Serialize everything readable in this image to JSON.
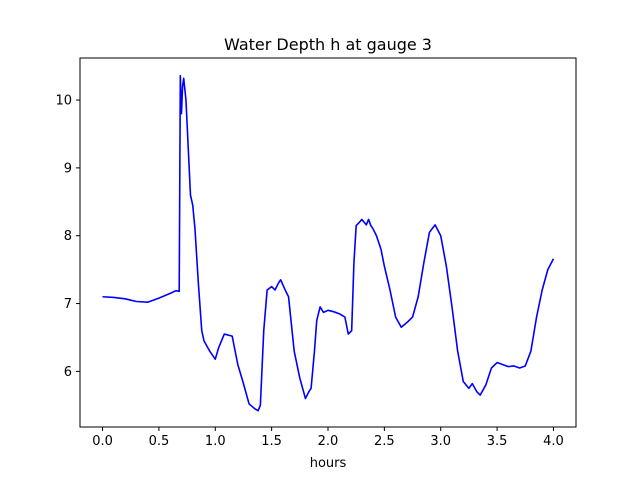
{
  "chart_data": {
    "type": "line",
    "title": "Water Depth h at gauge 3",
    "xlabel": "hours",
    "ylabel": "",
    "xlim": [
      -0.2,
      4.2
    ],
    "ylim": [
      5.18,
      10.62
    ],
    "xticks": [
      0.0,
      0.5,
      1.0,
      1.5,
      2.0,
      2.5,
      3.0,
      3.5,
      4.0
    ],
    "xtick_labels": [
      "0.0",
      "0.5",
      "1.0",
      "1.5",
      "2.0",
      "2.5",
      "3.0",
      "3.5",
      "4.0"
    ],
    "yticks": [
      6,
      7,
      8,
      9,
      10
    ],
    "ytick_labels": [
      "6",
      "7",
      "8",
      "9",
      "10"
    ],
    "grid": false,
    "legend": "none",
    "series": [
      {
        "color": "#0000ff",
        "x": [
          0.0,
          0.1,
          0.2,
          0.3,
          0.4,
          0.5,
          0.6,
          0.65,
          0.68,
          0.69,
          0.7,
          0.71,
          0.72,
          0.74,
          0.76,
          0.78,
          0.8,
          0.82,
          0.85,
          0.88,
          0.9,
          0.95,
          1.0,
          1.03,
          1.08,
          1.15,
          1.2,
          1.25,
          1.3,
          1.35,
          1.38,
          1.4,
          1.43,
          1.46,
          1.5,
          1.53,
          1.56,
          1.58,
          1.62,
          1.65,
          1.7,
          1.75,
          1.8,
          1.83,
          1.85,
          1.88,
          1.9,
          1.93,
          1.96,
          2.0,
          2.05,
          2.1,
          2.15,
          2.18,
          2.21,
          2.23,
          2.25,
          2.28,
          2.3,
          2.32,
          2.34,
          2.36,
          2.38,
          2.4,
          2.43,
          2.47,
          2.5,
          2.55,
          2.6,
          2.65,
          2.7,
          2.75,
          2.8,
          2.85,
          2.9,
          2.95,
          3.0,
          3.05,
          3.1,
          3.15,
          3.2,
          3.25,
          3.28,
          3.32,
          3.35,
          3.4,
          3.45,
          3.5,
          3.55,
          3.6,
          3.65,
          3.7,
          3.75,
          3.8,
          3.85,
          3.9,
          3.95,
          4.0
        ],
        "y": [
          7.1,
          7.09,
          7.07,
          7.03,
          7.02,
          7.08,
          7.15,
          7.19,
          7.18,
          10.36,
          9.8,
          10.2,
          10.32,
          10.0,
          9.3,
          8.6,
          8.45,
          8.1,
          7.3,
          6.6,
          6.45,
          6.3,
          6.18,
          6.35,
          6.55,
          6.52,
          6.1,
          5.82,
          5.52,
          5.45,
          5.42,
          5.5,
          6.6,
          7.2,
          7.25,
          7.2,
          7.3,
          7.35,
          7.2,
          7.1,
          6.3,
          5.9,
          5.6,
          5.7,
          5.75,
          6.3,
          6.75,
          6.95,
          6.87,
          6.9,
          6.88,
          6.85,
          6.8,
          6.55,
          6.6,
          7.6,
          8.15,
          8.2,
          8.24,
          8.2,
          8.16,
          8.24,
          8.15,
          8.1,
          8.0,
          7.8,
          7.55,
          7.2,
          6.8,
          6.65,
          6.72,
          6.8,
          7.1,
          7.6,
          8.05,
          8.16,
          8.0,
          7.55,
          6.95,
          6.3,
          5.85,
          5.75,
          5.82,
          5.7,
          5.65,
          5.8,
          6.05,
          6.13,
          6.1,
          6.07,
          6.08,
          6.05,
          6.08,
          6.3,
          6.8,
          7.2,
          7.5,
          7.66
        ]
      }
    ]
  }
}
